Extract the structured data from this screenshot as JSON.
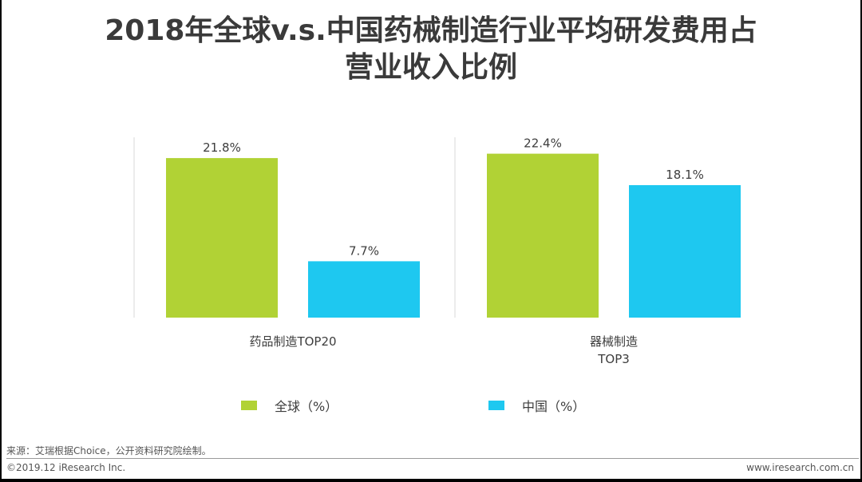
{
  "title_line1": "2018年全球v.s.中国药械制造行业平均研发费用占",
  "title_line2": "营业收入比例",
  "chart_data": {
    "type": "bar",
    "title": "2018年全球v.s.中国药械制造行业平均研发费用占营业收入比例",
    "categories": [
      [
        "药品制造TOP20"
      ],
      [
        "器械制造",
        "TOP3"
      ]
    ],
    "series": [
      {
        "name": "全球（%）",
        "color": "#b1d235",
        "values": [
          21.8,
          22.4
        ]
      },
      {
        "name": "中国（%）",
        "color": "#1ec8f0",
        "values": [
          7.7,
          18.1
        ]
      }
    ],
    "ylim": [
      0,
      25
    ],
    "value_suffix": "%",
    "legend_position": "bottom",
    "grid": false
  },
  "footer": {
    "source": "来源：艾瑞根据Choice，公开资料研究院绘制。",
    "copyright": "©2019.12 iResearch Inc.",
    "website": "www.iresearch.com.cn"
  }
}
